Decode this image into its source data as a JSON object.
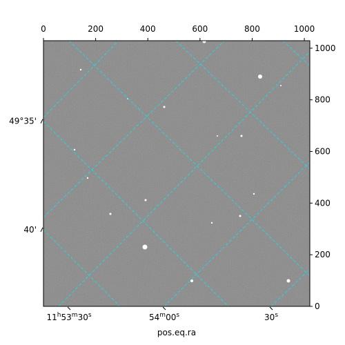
{
  "chart_data": {
    "type": "image",
    "xlabel": "pos.eq.ra",
    "xlim": [
      0,
      1021
    ],
    "ylim": [
      0,
      1029
    ],
    "xticks": [
      0,
      200,
      400,
      600,
      800,
      1000
    ],
    "yticks": [
      0,
      200,
      400,
      600,
      800,
      1000
    ],
    "ra_ticks": [
      {
        "value": 98,
        "label": "11h53m30s"
      },
      {
        "value": 463,
        "label": "54m00s"
      },
      {
        "value": 873,
        "label": "30s"
      }
    ],
    "dec_ticks": [
      {
        "value": 717,
        "label": "49°35'"
      },
      {
        "value": 297,
        "label": "40'"
      }
    ]
  }
}
